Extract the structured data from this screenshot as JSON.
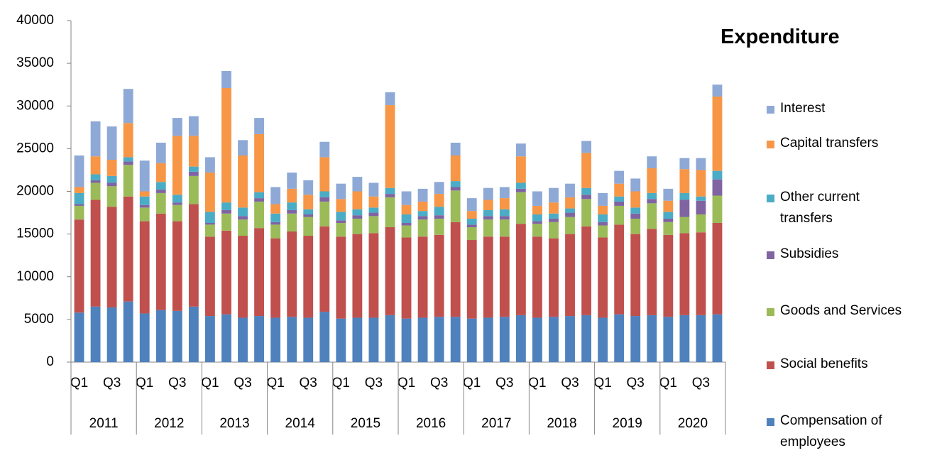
{
  "chart_data": {
    "type": "stacked_bar",
    "title": "Expenditure",
    "categories": [
      "Q1",
      null,
      "Q3",
      null,
      "Q1",
      null,
      "Q3",
      null,
      "Q1",
      null,
      "Q3",
      null,
      "Q1",
      null,
      "Q3",
      null,
      "Q1",
      null,
      "Q3",
      null,
      "Q1",
      null,
      "Q3",
      null,
      "Q1",
      null,
      "Q3",
      null,
      "Q1",
      null,
      "Q3",
      null,
      "Q1",
      null,
      "Q3",
      null,
      "Q1",
      null,
      "Q3",
      null
    ],
    "category_groups": [
      "2011",
      "2012",
      "2013",
      "2014",
      "2015",
      "2016",
      "2017",
      "2018",
      "2019",
      "2020"
    ],
    "ylim": [
      0,
      40000
    ],
    "yticks": [
      0,
      5000,
      10000,
      15000,
      20000,
      25000,
      30000,
      35000,
      40000
    ],
    "grid": false,
    "series": [
      {
        "name": "Compensation of employees",
        "color": "#4f81bd",
        "values": [
          5800,
          6500,
          6400,
          7100,
          5700,
          6100,
          6000,
          6500,
          5400,
          5600,
          5200,
          5400,
          5200,
          5300,
          5200,
          5900,
          5100,
          5200,
          5200,
          5500,
          5100,
          5200,
          5300,
          5300,
          5100,
          5200,
          5300,
          5500,
          5200,
          5300,
          5400,
          5500,
          5200,
          5600,
          5400,
          5500,
          5300,
          5500,
          5500,
          5600
        ]
      },
      {
        "name": "Social benefits",
        "color": "#c0504d",
        "values": [
          10900,
          12500,
          11800,
          12300,
          10800,
          11300,
          10500,
          12000,
          9300,
          9800,
          9600,
          10300,
          9300,
          10000,
          9600,
          10000,
          9600,
          9800,
          9900,
          10300,
          9500,
          9500,
          9600,
          11100,
          9200,
          9500,
          9400,
          10700,
          9500,
          9200,
          9600,
          10400,
          9400,
          10500,
          9600,
          10100,
          9600,
          9600,
          9700,
          10700
        ]
      },
      {
        "name": "Goods and Services",
        "color": "#9bbb59",
        "values": [
          1600,
          2000,
          2400,
          3700,
          1600,
          2400,
          1900,
          3300,
          1400,
          2000,
          1900,
          3100,
          1600,
          2100,
          2200,
          2900,
          1600,
          1800,
          2000,
          3500,
          1400,
          2000,
          1900,
          3700,
          1500,
          2000,
          2000,
          3700,
          1500,
          1900,
          2000,
          3200,
          1400,
          2200,
          1800,
          3000,
          1500,
          1900,
          2100,
          3200
        ]
      },
      {
        "name": "Subsidies",
        "color": "#8064a2",
        "values": [
          200,
          300,
          400,
          400,
          300,
          400,
          300,
          500,
          200,
          400,
          400,
          400,
          300,
          400,
          300,
          500,
          300,
          400,
          400,
          400,
          300,
          400,
          400,
          400,
          300,
          400,
          400,
          400,
          300,
          400,
          500,
          500,
          400,
          500,
          600,
          500,
          400,
          2000,
          1600,
          1900
        ]
      },
      {
        "name": "Other current transfers",
        "color": "#4bacc6",
        "values": [
          1300,
          700,
          800,
          500,
          1000,
          900,
          900,
          600,
          1300,
          900,
          1000,
          700,
          1000,
          900,
          600,
          700,
          1000,
          700,
          600,
          700,
          1000,
          600,
          1000,
          700,
          700,
          700,
          800,
          700,
          800,
          600,
          500,
          800,
          900,
          600,
          700,
          700,
          800,
          800,
          500,
          1000
        ]
      },
      {
        "name": "Capital transfers",
        "color": "#f79646",
        "values": [
          700,
          2100,
          1900,
          4000,
          600,
          2200,
          6900,
          3600,
          4600,
          13400,
          6100,
          6800,
          1100,
          1600,
          1700,
          4000,
          1500,
          2100,
          1300,
          9700,
          1100,
          1100,
          1500,
          3000,
          900,
          1200,
          1300,
          3100,
          1000,
          1300,
          1300,
          4100,
          1000,
          1500,
          1900,
          2900,
          1300,
          2800,
          3100,
          8700
        ]
      },
      {
        "name": "Interest",
        "color": "#8ea9d6",
        "values": [
          3700,
          4100,
          3900,
          4000,
          3600,
          2400,
          2100,
          2300,
          1800,
          2000,
          1800,
          1900,
          2000,
          1900,
          1700,
          1800,
          1800,
          1700,
          1600,
          1500,
          1600,
          1500,
          1400,
          1500,
          1500,
          1400,
          1300,
          1500,
          1700,
          1700,
          1600,
          1400,
          1500,
          1500,
          1500,
          1400,
          1400,
          1300,
          1400,
          1400
        ]
      }
    ]
  }
}
